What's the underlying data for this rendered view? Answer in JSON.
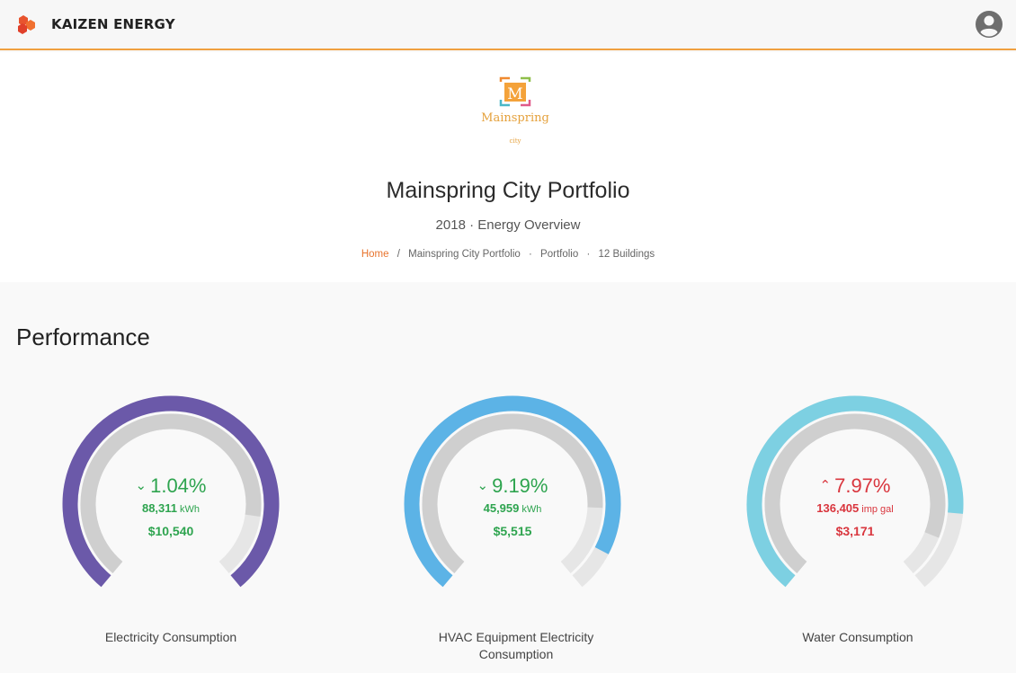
{
  "header": {
    "brand": "KAIZEN ENERGY",
    "user_icon": "user-circle-icon"
  },
  "client": {
    "logo_letter": "M",
    "logo_name": "Mainspring",
    "logo_sub": "city"
  },
  "portfolio": {
    "title": "Mainspring City Portfolio",
    "subtitle": "2018 · Energy Overview",
    "breadcrumb": {
      "home": "Home",
      "sep": "/",
      "p1": "Mainspring City Portfolio",
      "p2": "Portfolio",
      "p3": "12 Buildings",
      "dot": "·"
    }
  },
  "section": {
    "title": "Performance"
  },
  "colors": {
    "accent": "#f0a040",
    "home_link": "#e8742e",
    "purple": "#6b59a9",
    "blue": "#5cb3e6",
    "cyan": "#7dd0e2",
    "green": "#2ea44f",
    "red": "#d9363e"
  },
  "gauges": [
    {
      "label": "Electricity Consumption",
      "trend": "down",
      "arrow": "⌄",
      "percent": "1.04%",
      "amount": "88,311",
      "unit": "kWh",
      "cost": "$10,540",
      "outer_fraction": 1.0,
      "inner_fraction": 0.85,
      "color": "#6b59a9"
    },
    {
      "label": "HVAC Equipment Electricity Consumption",
      "trend": "down",
      "arrow": "⌄",
      "percent": "9.19%",
      "amount": "45,959",
      "unit": "kWh",
      "cost": "$5,515",
      "outer_fraction": 0.92,
      "inner_fraction": 0.83,
      "color": "#5cb3e6"
    },
    {
      "label": "Water Consumption",
      "trend": "up",
      "arrow": "⌃",
      "percent": "7.97%",
      "amount": "136,405",
      "unit": "imp gal",
      "cost": "$3,171",
      "outer_fraction": 0.84,
      "inner_fraction": 0.9,
      "color": "#7dd0e2"
    }
  ]
}
